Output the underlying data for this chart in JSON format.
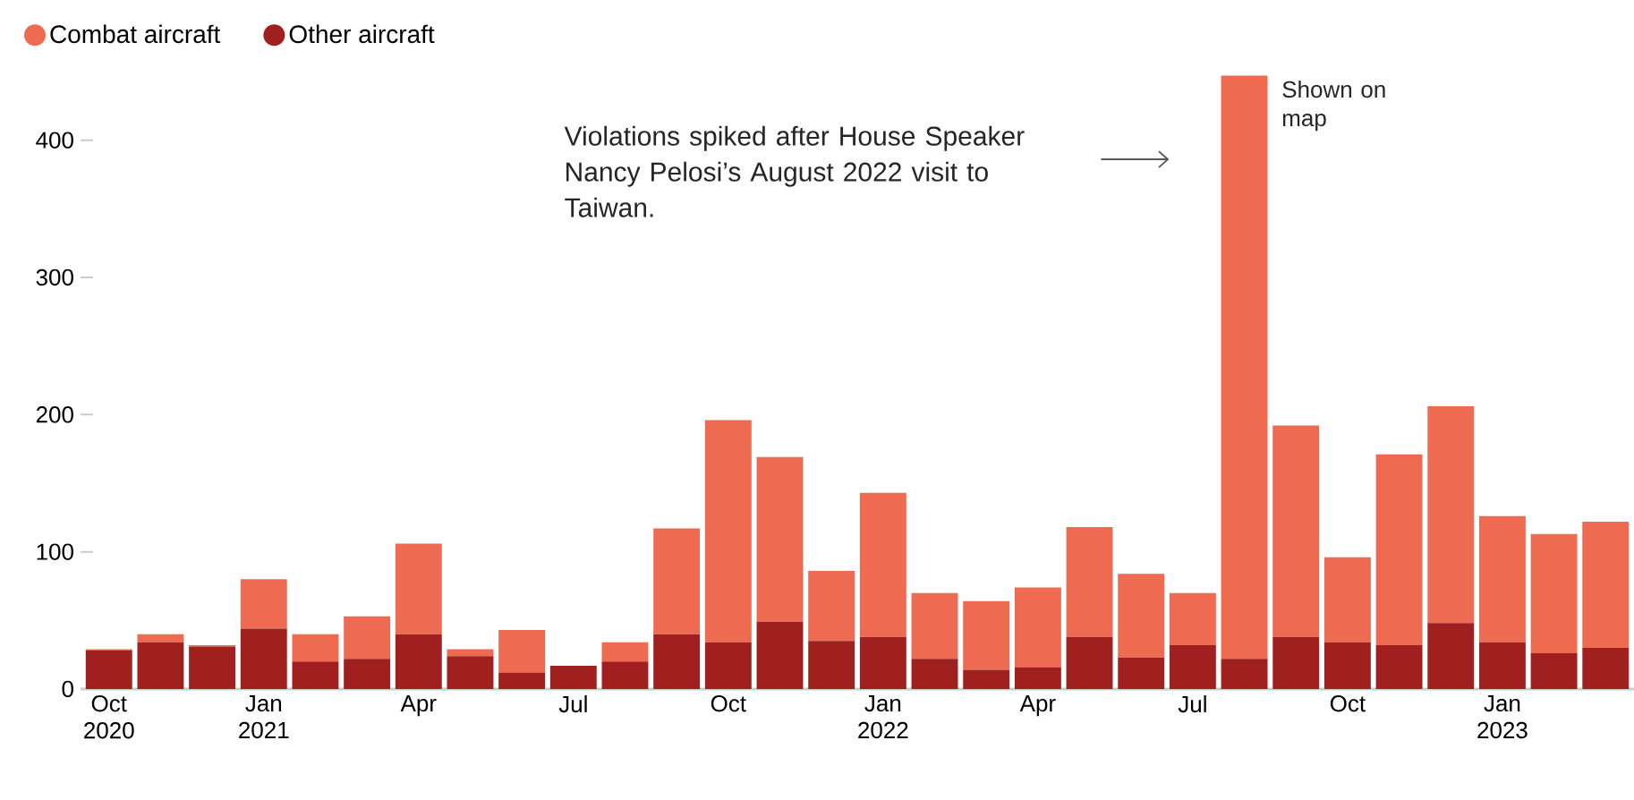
{
  "chart_data": {
    "type": "bar",
    "stacked": true,
    "categories": [
      "Oct 2020",
      null,
      null,
      "Jan 2021",
      null,
      null,
      "Apr",
      null,
      null,
      "Jul",
      null,
      null,
      "Oct",
      null,
      null,
      "Jan 2022",
      null,
      null,
      "Apr",
      null,
      null,
      "Jul",
      null,
      null,
      "Oct",
      null,
      null,
      "Jan 2023",
      null,
      null
    ],
    "series": [
      {
        "name": "Other aircraft",
        "color": "#a02020",
        "values": [
          28,
          34,
          31,
          44,
          20,
          22,
          40,
          24,
          12,
          17,
          20,
          40,
          34,
          49,
          35,
          38,
          22,
          14,
          16,
          38,
          23,
          32,
          22,
          38,
          34,
          32,
          48,
          34,
          26,
          30
        ]
      },
      {
        "name": "Combat aircraft",
        "color": "#ee6a50",
        "values": [
          1,
          6,
          1,
          36,
          20,
          31,
          66,
          5,
          31,
          0,
          14,
          77,
          162,
          120,
          51,
          105,
          48,
          50,
          58,
          80,
          61,
          38,
          425,
          154,
          62,
          139,
          158,
          92,
          87,
          92
        ]
      }
    ],
    "ylim": [
      0,
      450
    ],
    "yticks": [
      0,
      100,
      200,
      300,
      400
    ],
    "grid": false,
    "legend": "top left",
    "annotations": [
      "Violations spiked after House Speaker Nancy Pelosi’s August 2022 visit to Taiwan.",
      "Shown on map"
    ]
  }
}
